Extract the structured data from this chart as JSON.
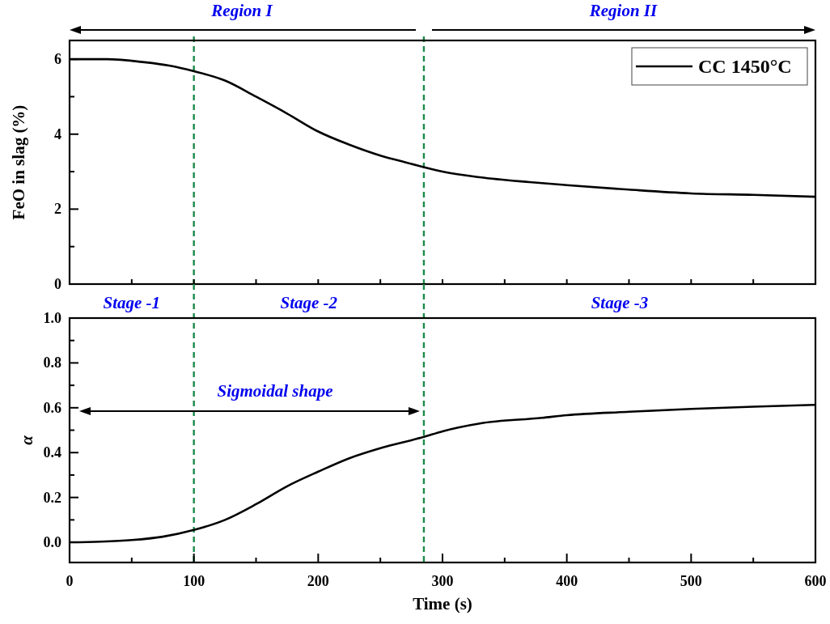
{
  "chart_data": [
    {
      "type": "line",
      "ylabel": "FeO in slag (%)",
      "legend": "top right",
      "tick_labels": "y",
      "line_style": "solid",
      "xlim": [
        0,
        600
      ],
      "ylim": [
        0,
        6.5
      ],
      "xticks": [
        0,
        {
          "value": 50,
          "label": null
        },
        {
          "value": 100,
          "label": null
        },
        {
          "value": 150,
          "label": null
        },
        {
          "value": 200,
          "label": null
        },
        {
          "value": 250,
          "label": null
        },
        {
          "value": 300,
          "label": null
        },
        {
          "value": 350,
          "label": null
        },
        {
          "value": 400,
          "label": null
        },
        {
          "value": 450,
          "label": null
        },
        {
          "value": 500,
          "label": null
        },
        {
          "value": 550,
          "label": null
        },
        {
          "value": 600,
          "label": null
        }
      ],
      "yticks": [
        0,
        {
          "value": 1,
          "label": null
        },
        2,
        {
          "value": 3,
          "label": null
        },
        4,
        {
          "value": 5,
          "label": null
        },
        6
      ],
      "series": [
        {
          "name": "CC 1450°C",
          "color": "#000000",
          "x": [
            0,
            30,
            60,
            80,
            100,
            125,
            150,
            175,
            200,
            225,
            250,
            270,
            285,
            300,
            330,
            370,
            400,
            450,
            500,
            550,
            600
          ],
          "values": [
            6.0,
            6.0,
            5.92,
            5.83,
            5.68,
            5.43,
            5.0,
            4.55,
            4.07,
            3.72,
            3.43,
            3.25,
            3.12,
            3.0,
            2.85,
            2.72,
            2.64,
            2.52,
            2.42,
            2.38,
            2.33
          ]
        }
      ],
      "ref_lines": [
        {
          "axis": "x",
          "value": 100,
          "color": "#1b8a4a",
          "line_style": "dashed"
        },
        {
          "axis": "x",
          "value": 285,
          "color": "#1b8a4a",
          "line_style": "dashed"
        }
      ],
      "annotations": [
        "Region I",
        "Region II"
      ]
    },
    {
      "type": "line",
      "xlabel": "Time (s)",
      "ylabel": "α",
      "line_style": "solid",
      "xlim": [
        0,
        600
      ],
      "ylim": [
        -0.09,
        1.0
      ],
      "xticks": [
        0,
        {
          "value": 50,
          "label": null
        },
        100,
        {
          "value": 150,
          "label": null
        },
        200,
        {
          "value": 250,
          "label": null
        },
        300,
        {
          "value": 350,
          "label": null
        },
        400,
        {
          "value": 450,
          "label": null
        },
        500,
        {
          "value": 550,
          "label": null
        },
        600
      ],
      "yticks": [
        {
          "value": 0,
          "label": "0.0"
        },
        {
          "value": 0.1,
          "label": null
        },
        0.2,
        {
          "value": 0.3,
          "label": null
        },
        0.4,
        {
          "value": 0.5,
          "label": null
        },
        0.6,
        {
          "value": 0.7,
          "label": null
        },
        0.8,
        {
          "value": 0.9,
          "label": null
        },
        {
          "value": 1,
          "label": "1.0"
        }
      ],
      "series": [
        {
          "color": "#000000",
          "x": [
            0,
            25,
            50,
            75,
            100,
            125,
            150,
            175,
            200,
            225,
            250,
            285,
            300,
            330,
            380,
            400,
            450,
            500,
            550,
            600
          ],
          "values": [
            0.0,
            0.003,
            0.01,
            0.025,
            0.055,
            0.1,
            0.17,
            0.25,
            0.315,
            0.375,
            0.42,
            0.47,
            0.495,
            0.53,
            0.555,
            0.567,
            0.582,
            0.595,
            0.605,
            0.613
          ]
        }
      ],
      "ref_lines": [
        {
          "axis": "x",
          "value": 100,
          "color": "#1b8a4a",
          "line_style": "dashed"
        },
        {
          "axis": "x",
          "value": 285,
          "color": "#1b8a4a",
          "line_style": "dashed"
        }
      ],
      "annotations": [
        "Stage -1",
        "Stage -2",
        "Stage -3",
        "Sigmoidal shape"
      ]
    }
  ]
}
